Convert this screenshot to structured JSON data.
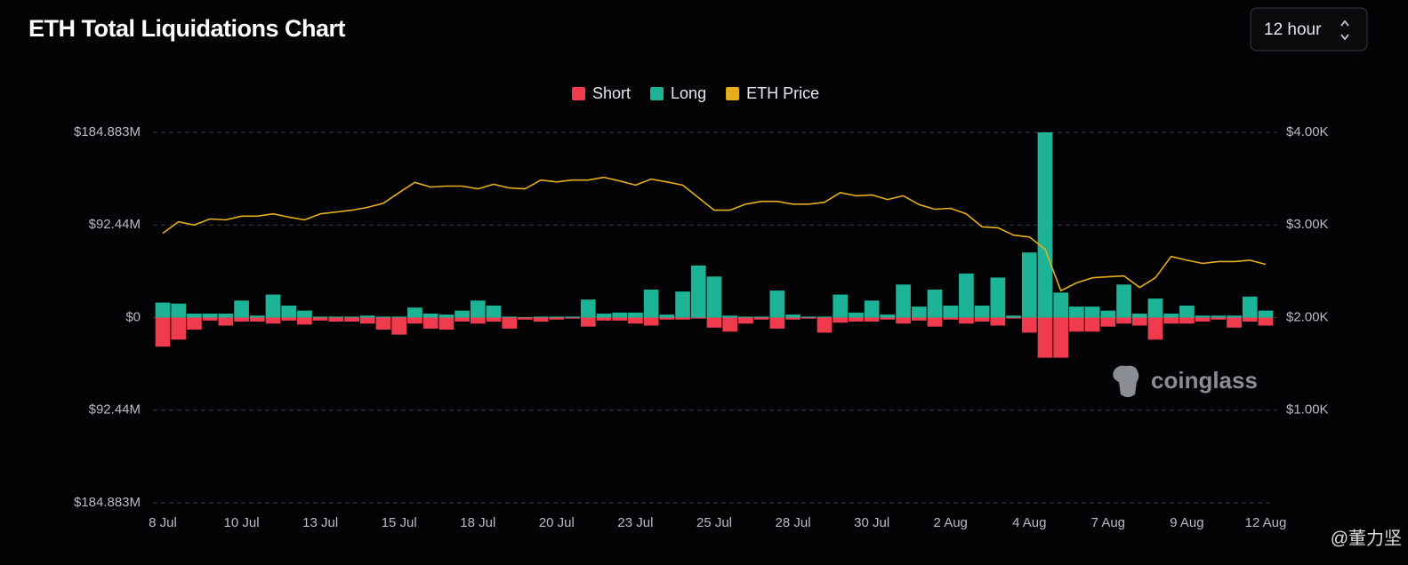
{
  "chart_data": {
    "type": "bar",
    "title": "ETH Total Liquidations Chart",
    "watermark": "coinglass",
    "credit": "@董力坚",
    "interval": "12 hour",
    "categories": [
      "8 Jul",
      null,
      null,
      null,
      null,
      "10 Jul",
      null,
      null,
      null,
      null,
      "13 Jul",
      null,
      null,
      null,
      null,
      "15 Jul",
      null,
      null,
      null,
      null,
      "18 Jul",
      null,
      null,
      null,
      null,
      "20 Jul",
      null,
      null,
      null,
      null,
      "23 Jul",
      null,
      null,
      null,
      null,
      "25 Jul",
      null,
      null,
      null,
      null,
      "28 Jul",
      null,
      null,
      null,
      null,
      "30 Jul",
      null,
      null,
      null,
      null,
      "2 Aug",
      null,
      null,
      null,
      null,
      "4 Aug",
      null,
      null,
      null,
      null,
      "7 Aug",
      null,
      null,
      null,
      null,
      "9 Aug",
      null,
      null,
      null,
      null,
      "12 Aug"
    ],
    "series": [
      {
        "name": "Short",
        "color": "#ef3b4d",
        "values": [
          -29,
          -22,
          -12,
          -3,
          -8,
          -4,
          -4,
          -6,
          -3,
          -7,
          -3,
          -4,
          -4,
          -6,
          -12,
          -17,
          -6,
          -11,
          -12,
          -4,
          -6,
          -4,
          -11,
          -2,
          -4,
          -2,
          -1,
          -9,
          -3,
          -3,
          -6,
          -8,
          -2,
          -2,
          -1,
          -10,
          -14,
          -6,
          -2,
          -11,
          -2,
          -1,
          -15,
          -5,
          -4,
          -4,
          -2,
          -6,
          -3,
          -9,
          -2,
          -6,
          -4,
          -8,
          -1,
          -15,
          -40,
          -40,
          -14,
          -14,
          -9,
          -6,
          -8,
          -22,
          -6,
          -6,
          -4,
          -2,
          -10,
          -4,
          -8
        ]
      },
      {
        "name": "Long",
        "color": "#1db396",
        "values": [
          15,
          14,
          4,
          4,
          4,
          17,
          2,
          23,
          12,
          7,
          1,
          1,
          1,
          2,
          1,
          1,
          10,
          4,
          3,
          7,
          17,
          12,
          1,
          0.5,
          1,
          1,
          1,
          18,
          4,
          5,
          5,
          28,
          3,
          26,
          52,
          41,
          2,
          1,
          1,
          27,
          3,
          1,
          1,
          23,
          5,
          17,
          3,
          33,
          11,
          28,
          12,
          44,
          12,
          40,
          2,
          65,
          184.883,
          25,
          11,
          11,
          7,
          33,
          4,
          19,
          4,
          12,
          2,
          2,
          2,
          21,
          7
        ]
      },
      {
        "name": "ETH Price",
        "color": "#e5ae1c",
        "type": "line",
        "axis": "y2",
        "values": [
          2910,
          3035,
          3000,
          3065,
          3055,
          3095,
          3095,
          3120,
          3085,
          3055,
          3120,
          3140,
          3160,
          3190,
          3235,
          3350,
          3460,
          3410,
          3420,
          3420,
          3390,
          3440,
          3400,
          3390,
          3485,
          3465,
          3485,
          3485,
          3515,
          3475,
          3430,
          3495,
          3465,
          3430,
          3295,
          3160,
          3160,
          3225,
          3255,
          3255,
          3225,
          3225,
          3245,
          3350,
          3315,
          3325,
          3275,
          3315,
          3220,
          3170,
          3180,
          3120,
          2980,
          2970,
          2890,
          2870,
          2740,
          2290,
          2375,
          2430,
          2440,
          2450,
          2325,
          2430,
          2660,
          2620,
          2585,
          2605,
          2605,
          2620,
          2575
        ]
      }
    ],
    "ylim": [
      -184.883,
      184.883
    ],
    "yticks": [
      {
        "value": -184.883,
        "label": "$184.883M"
      },
      {
        "value": -92.44,
        "label": "$92.44M"
      },
      {
        "value": 0,
        "label": "$0"
      },
      {
        "value": 92.44,
        "label": "$92.44M"
      },
      {
        "value": 184.883,
        "label": "$184.883M"
      }
    ],
    "y2lim": [
      0,
      4000
    ],
    "y2ticks": [
      {
        "value": 1000,
        "label": "$1.00K"
      },
      {
        "value": 2000,
        "label": "$2.00K"
      },
      {
        "value": 3000,
        "label": "$3.00K"
      },
      {
        "value": 4000,
        "label": "$4.00K"
      }
    ],
    "grid": true
  }
}
